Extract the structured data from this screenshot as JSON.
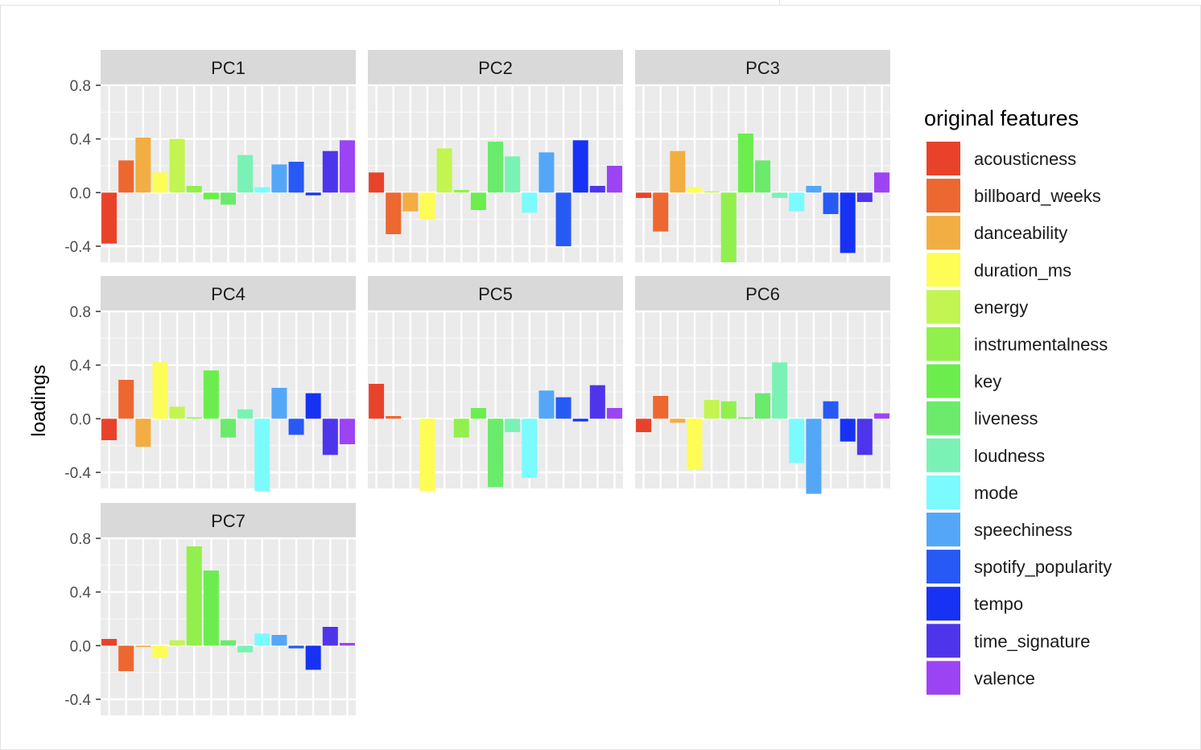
{
  "chart_data": {
    "type": "bar",
    "ylabel": "loadings",
    "xlabel": "",
    "ylim": [
      -0.52,
      0.8
    ],
    "yticks": [
      0.8,
      0.4,
      0.0,
      -0.4
    ],
    "ytick_labels": [
      "0.8",
      "0.4",
      "0.0",
      "-0.4"
    ],
    "grid": true,
    "legend": {
      "title": "original features",
      "placement": "right"
    },
    "categories": [
      "acousticness",
      "billboard_weeks",
      "danceability",
      "duration_ms",
      "energy",
      "instrumentalness",
      "key",
      "liveness",
      "loudness",
      "mode",
      "speechiness",
      "spotify_popularity",
      "tempo",
      "time_signature",
      "valence"
    ],
    "colors": [
      "#E8432A",
      "#ED6730",
      "#F2AE42",
      "#FDFD55",
      "#C2F551",
      "#91F04D",
      "#6BEE4D",
      "#6BEB6B",
      "#7BF2B5",
      "#7BFBFE",
      "#54A7F8",
      "#2759F5",
      "#1732F5",
      "#4E35EC",
      "#9C44F3"
    ],
    "panels": [
      {
        "label": "PC1",
        "values": [
          -0.38,
          0.24,
          0.41,
          0.15,
          0.4,
          0.05,
          -0.05,
          -0.09,
          0.28,
          0.04,
          0.21,
          0.23,
          -0.02,
          0.31,
          0.39
        ]
      },
      {
        "label": "PC2",
        "values": [
          0.15,
          -0.31,
          -0.14,
          -0.2,
          0.33,
          0.02,
          -0.13,
          0.38,
          0.27,
          -0.15,
          0.3,
          -0.4,
          0.39,
          0.05,
          0.2
        ]
      },
      {
        "label": "PC3",
        "values": [
          -0.04,
          -0.29,
          0.31,
          0.04,
          0.01,
          -0.52,
          0.44,
          0.24,
          -0.04,
          -0.14,
          0.05,
          -0.16,
          -0.45,
          -0.07,
          0.15
        ]
      },
      {
        "label": "PC4",
        "values": [
          -0.16,
          0.29,
          -0.21,
          0.42,
          0.09,
          0.01,
          0.36,
          -0.14,
          0.07,
          -0.54,
          0.23,
          -0.12,
          0.19,
          -0.27,
          -0.19
        ]
      },
      {
        "label": "PC5",
        "values": [
          0.26,
          0.02,
          0.0,
          -0.54,
          0.0,
          -0.14,
          0.08,
          -0.51,
          -0.1,
          -0.44,
          0.21,
          0.16,
          -0.02,
          0.25,
          0.08
        ]
      },
      {
        "label": "PC6",
        "values": [
          -0.1,
          0.17,
          -0.03,
          -0.38,
          0.14,
          0.13,
          0.01,
          0.19,
          0.42,
          -0.33,
          -0.56,
          0.13,
          -0.17,
          -0.27,
          0.04
        ]
      },
      {
        "label": "PC7",
        "values": [
          0.05,
          -0.19,
          -0.01,
          -0.09,
          0.04,
          0.74,
          0.56,
          0.04,
          -0.05,
          0.09,
          0.08,
          -0.02,
          -0.18,
          0.14,
          0.02
        ]
      }
    ]
  }
}
